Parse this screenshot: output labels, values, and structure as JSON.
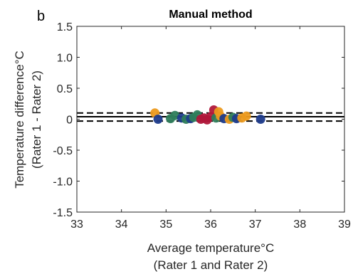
{
  "panel_label": "b",
  "chart_data": {
    "type": "scatter",
    "title": "Manual method",
    "xlabel": [
      "Average temperature°C",
      "(Rater 1 and Rater 2)"
    ],
    "ylabel": [
      "Temperature difference°C",
      "(Rater 1 - Rater 2)"
    ],
    "xlim": [
      33,
      39
    ],
    "ylim": [
      -1.5,
      1.5
    ],
    "xticks": [
      33,
      34,
      35,
      36,
      37,
      38,
      39
    ],
    "yticks": [
      -1.5,
      -1.0,
      -0.5,
      0,
      0.5,
      1.0,
      1.5
    ],
    "ytick_labels": [
      "-1.5",
      "-1.0",
      "-0.5",
      "0",
      "0.5",
      "1.0",
      "1.5"
    ],
    "grid": false,
    "reference_lines": [
      {
        "y": 0.04,
        "style": "solid"
      },
      {
        "y": 0.1,
        "style": "dashed"
      },
      {
        "y": -0.03,
        "style": "dashed"
      }
    ],
    "colors": {
      "blue": "#1f3c8c",
      "orange": "#ec9a1e",
      "green": "#2e7d5b",
      "red": "#b0173a"
    },
    "points": [
      {
        "x": 34.75,
        "y": 0.1,
        "color": "orange"
      },
      {
        "x": 34.82,
        "y": 0.0,
        "color": "blue"
      },
      {
        "x": 35.1,
        "y": 0.01,
        "color": "green"
      },
      {
        "x": 35.2,
        "y": 0.06,
        "color": "green"
      },
      {
        "x": 35.35,
        "y": 0.02,
        "color": "blue"
      },
      {
        "x": 35.45,
        "y": 0.0,
        "color": "green"
      },
      {
        "x": 35.55,
        "y": 0.01,
        "color": "blue"
      },
      {
        "x": 35.62,
        "y": 0.03,
        "color": "green"
      },
      {
        "x": 35.7,
        "y": 0.07,
        "color": "green"
      },
      {
        "x": 35.78,
        "y": 0.0,
        "color": "red"
      },
      {
        "x": 35.85,
        "y": 0.02,
        "color": "red"
      },
      {
        "x": 35.92,
        "y": -0.01,
        "color": "red"
      },
      {
        "x": 36.0,
        "y": 0.04,
        "color": "red"
      },
      {
        "x": 36.07,
        "y": 0.15,
        "color": "red"
      },
      {
        "x": 36.12,
        "y": 0.02,
        "color": "green"
      },
      {
        "x": 36.18,
        "y": 0.12,
        "color": "orange"
      },
      {
        "x": 36.22,
        "y": 0.05,
        "color": "orange"
      },
      {
        "x": 36.3,
        "y": 0.01,
        "color": "blue"
      },
      {
        "x": 36.42,
        "y": 0.0,
        "color": "orange"
      },
      {
        "x": 36.5,
        "y": 0.03,
        "color": "green"
      },
      {
        "x": 36.58,
        "y": 0.01,
        "color": "blue"
      },
      {
        "x": 36.7,
        "y": 0.02,
        "color": "orange"
      },
      {
        "x": 36.8,
        "y": 0.05,
        "color": "orange"
      },
      {
        "x": 37.12,
        "y": 0.0,
        "color": "blue"
      }
    ]
  }
}
